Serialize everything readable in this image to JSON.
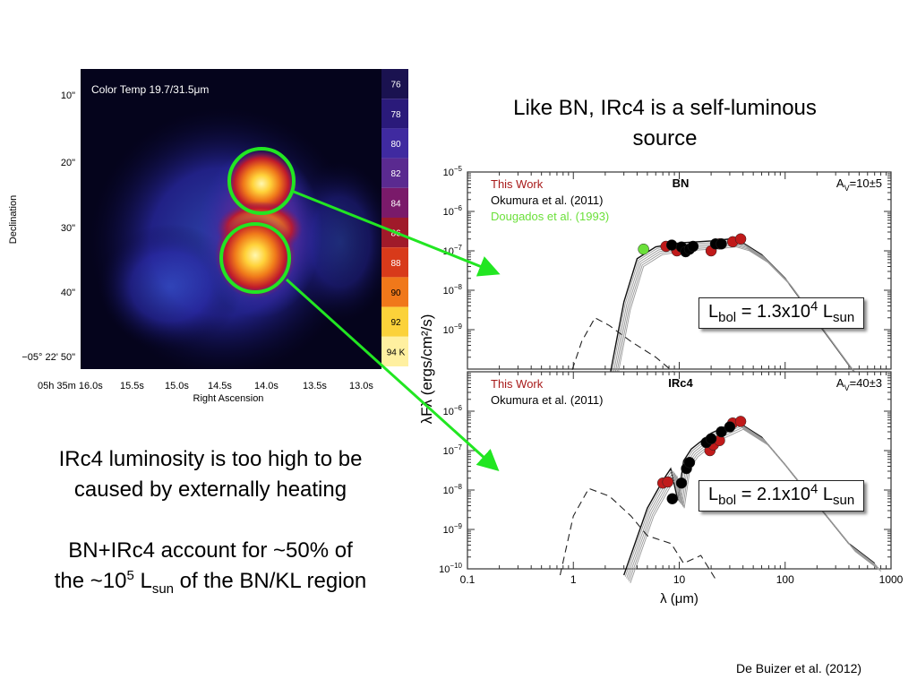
{
  "intro_text": {
    "line1": "Like BN, IRc4 is a self-luminous",
    "line2": "source"
  },
  "left_text": {
    "p1_line1": "IRc4 luminosity is too high to be",
    "p1_line2": "caused by externally heating",
    "p2_line1": "BN+IRc4 account for ~50% of",
    "p2_pre": "the ~10",
    "p2_sup": "5",
    "p2_L": " L",
    "p2_sub": "sun",
    "p2_post": " of the BN/KL region"
  },
  "luminosity_boxes": {
    "bn": {
      "pre": "L",
      "sub1": "bol",
      "mid": " = 1.3x10",
      "sup": "4",
      "L": " L",
      "sub2": "sun"
    },
    "irc4": {
      "pre": "L",
      "sub1": "bol",
      "mid": " = 2.1x10",
      "sup": "4",
      "L": " L",
      "sub2": "sun"
    }
  },
  "footer": "De Buizer et al. (2012)",
  "image_panel": {
    "title": "Color Temp 19.7/31.5μm",
    "ylabel": "Declination",
    "xlabel": "Right Ascension",
    "dec_ticks": [
      "10\"",
      "20\"",
      "30\"",
      "40\"",
      "−05° 22' 50\""
    ],
    "ra_ticks": [
      "05h 35m 16.0s",
      "15.5s",
      "15.0s",
      "14.5s",
      "14.0s",
      "13.5s",
      "13.0s"
    ],
    "colorbar": {
      "labels": [
        "76",
        "78",
        "80",
        "82",
        "84",
        "86",
        "88",
        "90",
        "92",
        "94 K"
      ],
      "colors": [
        "#1a1250",
        "#2a1a7a",
        "#3f2aa0",
        "#5a2a90",
        "#7a1a6a",
        "#a01a2a",
        "#d83a1a",
        "#f0781a",
        "#fbd23a",
        "#fff0a0"
      ]
    },
    "highlight_color": "#22e622"
  },
  "chart_data": [
    {
      "type": "scatter",
      "panel": "BN",
      "label": "BN",
      "extinction": "A_V=10±5",
      "legend": [
        {
          "name": "This Work",
          "color": "#a81a1a"
        },
        {
          "name": "Okumura et al. (2011)",
          "color": "#000000"
        },
        {
          "name": "Dougados et al. (1993)",
          "color": "#6be03a"
        }
      ],
      "ylabel": "λFλ (ergs/cm²/s)",
      "xscale": "log",
      "yscale": "log",
      "xlim": [
        0.1,
        1000
      ],
      "ylim": [
        1e-10,
        1e-05
      ],
      "y_ticks": [
        "10−5",
        "10−6",
        "10−7",
        "10−8",
        "10−9"
      ],
      "series": [
        {
          "name": "This Work",
          "color": "#c01a1a",
          "x": [
            7.5,
            9.5,
            20,
            24,
            32,
            38
          ],
          "y": [
            1.3e-07,
            1e-07,
            1e-07,
            1.5e-07,
            1.7e-07,
            2e-07
          ]
        },
        {
          "name": "Okumura et al. (2011)",
          "color": "#000000",
          "x": [
            8.5,
            10.5,
            11.5,
            12.5,
            13.5,
            22,
            25
          ],
          "y": [
            1.4e-07,
            1.25e-07,
            9.5e-08,
            1.1e-07,
            1.3e-07,
            1.5e-07,
            1.5e-07
          ]
        },
        {
          "name": "Dougados et al. (1993)",
          "color": "#6be03a",
          "x": [
            4.6
          ],
          "y": [
            1.1e-07
          ]
        }
      ]
    },
    {
      "type": "scatter",
      "panel": "IRc4",
      "label": "IRc4",
      "extinction": "A_V=40±3",
      "legend": [
        {
          "name": "This Work",
          "color": "#a81a1a"
        },
        {
          "name": "Okumura et al. (2011)",
          "color": "#000000"
        }
      ],
      "xlabel": "λ (μm)",
      "xscale": "log",
      "yscale": "log",
      "xlim": [
        0.1,
        1000
      ],
      "ylim": [
        1e-10,
        1e-05
      ],
      "x_ticks": [
        "0.1",
        "1",
        "10",
        "100",
        "1000"
      ],
      "y_ticks": [
        "10−6",
        "10−7",
        "10−8",
        "10−9",
        "10−10"
      ],
      "series": [
        {
          "name": "This Work",
          "color": "#c01a1a",
          "x": [
            7.0,
            7.8,
            19.5,
            21,
            24,
            32,
            38
          ],
          "y": [
            1.5e-08,
            1.6e-08,
            1e-07,
            1.4e-07,
            1.8e-07,
            5e-07,
            5.5e-07
          ]
        },
        {
          "name": "Okumura et al. (2011)",
          "color": "#000000",
          "x": [
            8.6,
            10.5,
            11.7,
            12.5,
            18,
            20,
            25,
            30
          ],
          "y": [
            6e-09,
            1.5e-08,
            3.5e-08,
            5e-08,
            1.6e-07,
            2e-07,
            3e-07,
            4e-07
          ]
        }
      ]
    }
  ]
}
